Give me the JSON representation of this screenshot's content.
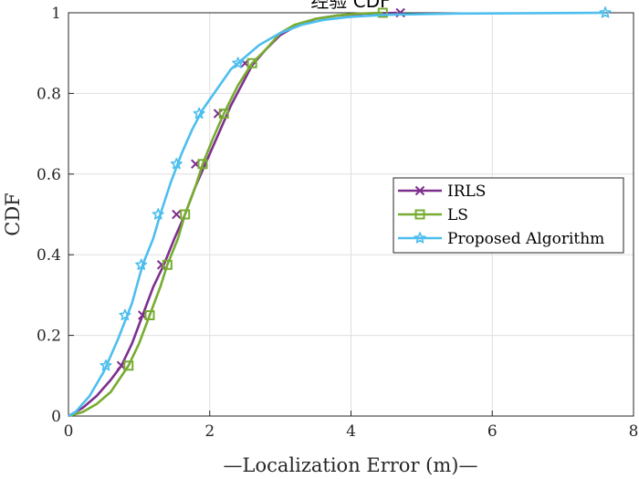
{
  "chart_data": {
    "type": "line",
    "title": "经验 CDF",
    "xlabel": "—Localization Error (m)—",
    "ylabel": "CDF",
    "xlim": [
      0,
      8
    ],
    "ylim": [
      0,
      1
    ],
    "x_ticks": [
      0,
      2,
      4,
      6,
      8
    ],
    "y_ticks": [
      0,
      0.2,
      0.4,
      0.6,
      0.8,
      1
    ],
    "x_tick_labels": [
      "0",
      "2",
      "4",
      "6",
      "8"
    ],
    "y_tick_labels": [
      "0",
      "0.2",
      "0.4",
      "0.6",
      "0.8",
      "1"
    ],
    "grid": true,
    "legend_position": "right",
    "series": [
      {
        "name": "IRLS",
        "color": "#7E2F8E",
        "marker": "x",
        "x": [
          0,
          0.2,
          0.4,
          0.6,
          0.75,
          0.9,
          1.05,
          1.2,
          1.35,
          1.5,
          1.65,
          1.8,
          2.0,
          2.15,
          2.3,
          2.45,
          2.6,
          2.8,
          3.0,
          3.2,
          3.5,
          3.8,
          4.2,
          4.65
        ],
        "y": [
          0,
          0.02,
          0.05,
          0.09,
          0.125,
          0.18,
          0.25,
          0.32,
          0.375,
          0.44,
          0.5,
          0.57,
          0.65,
          0.71,
          0.77,
          0.82,
          0.87,
          0.91,
          0.945,
          0.965,
          0.985,
          0.993,
          0.998,
          1.0
        ],
        "marker_x": [
          0.75,
          1.05,
          1.32,
          1.53,
          1.8,
          2.12,
          2.5,
          4.7
        ],
        "marker_y": [
          0.125,
          0.25,
          0.375,
          0.5,
          0.625,
          0.75,
          0.875,
          1.0
        ]
      },
      {
        "name": "LS",
        "color": "#77AC30",
        "marker": "square",
        "x": [
          0,
          0.2,
          0.4,
          0.6,
          0.85,
          1.0,
          1.15,
          1.3,
          1.4,
          1.55,
          1.65,
          1.8,
          1.9,
          2.05,
          2.2,
          2.4,
          2.6,
          2.8,
          3.0,
          3.2,
          3.5,
          3.8,
          4.1,
          4.45
        ],
        "y": [
          0,
          0.01,
          0.03,
          0.06,
          0.125,
          0.18,
          0.25,
          0.32,
          0.375,
          0.44,
          0.5,
          0.57,
          0.625,
          0.69,
          0.75,
          0.82,
          0.875,
          0.91,
          0.95,
          0.97,
          0.985,
          0.993,
          0.998,
          1.0
        ],
        "marker_x": [
          0.85,
          1.15,
          1.4,
          1.65,
          1.9,
          2.2,
          2.6,
          4.45
        ],
        "marker_y": [
          0.125,
          0.25,
          0.375,
          0.5,
          0.625,
          0.75,
          0.875,
          1.0
        ]
      },
      {
        "name": "Proposed Algorithm",
        "color": "#4DBEEE",
        "marker": "star",
        "x": [
          0,
          0.1,
          0.3,
          0.5,
          0.7,
          0.9,
          1.05,
          1.2,
          1.3,
          1.45,
          1.6,
          1.75,
          1.9,
          2.1,
          2.3,
          2.5,
          2.7,
          3.0,
          3.3,
          3.6,
          4.0,
          4.5,
          5.5,
          7.6
        ],
        "y": [
          0,
          0.01,
          0.05,
          0.11,
          0.19,
          0.28,
          0.375,
          0.44,
          0.5,
          0.58,
          0.65,
          0.71,
          0.76,
          0.81,
          0.86,
          0.89,
          0.92,
          0.95,
          0.97,
          0.982,
          0.99,
          0.995,
          0.998,
          1.0
        ],
        "marker_x": [
          0.53,
          0.8,
          1.03,
          1.27,
          1.53,
          1.85,
          2.4,
          7.6
        ],
        "marker_y": [
          0.125,
          0.25,
          0.375,
          0.5,
          0.625,
          0.75,
          0.875,
          1.0
        ]
      }
    ]
  }
}
